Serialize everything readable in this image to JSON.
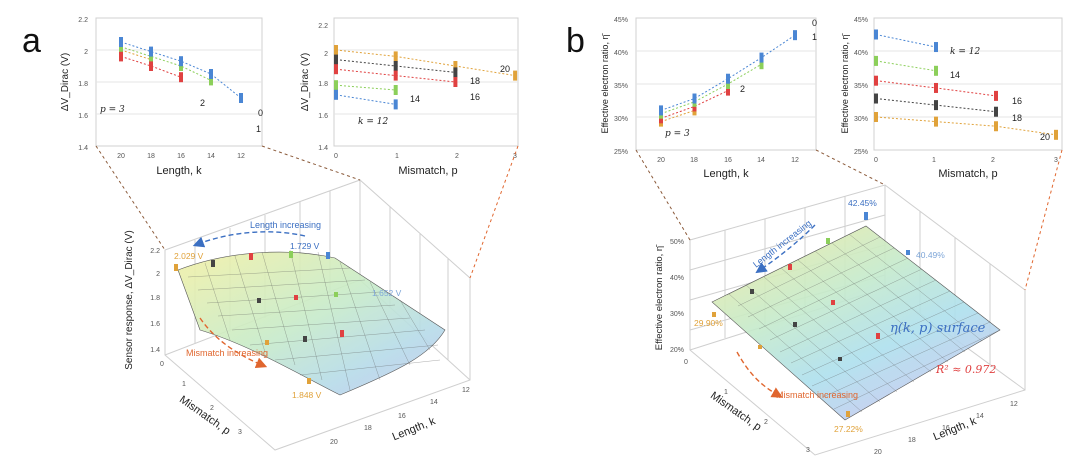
{
  "panels": [
    {
      "label": "a",
      "charts": [
        {
          "id": "a1",
          "type": "scatter-with-trendlines",
          "xlabel": "Length, k",
          "ylabel": "ΔV_Dirac (V)",
          "xticks": [
            "20",
            "18",
            "16",
            "14",
            "12"
          ],
          "yticks": [
            "1.4",
            "1.6",
            "1.8",
            "2",
            "2.2"
          ],
          "ylim": [
            1.4,
            2.2
          ],
          "series": [
            {
              "name": "p = 3",
              "color": "#e0a23a",
              "x": [
                20,
                18
              ],
              "y": [
                2.0,
                1.94
              ]
            },
            {
              "name": "2",
              "color": "#e04141",
              "x": [
                20,
                18,
                16
              ],
              "y": [
                1.96,
                1.9,
                1.83
              ]
            },
            {
              "name": "1",
              "color": "#8ccf5a",
              "x": [
                20,
                18,
                16,
                14
              ],
              "y": [
                2.02,
                1.96,
                1.9,
                1.81
              ]
            },
            {
              "name": "0",
              "color": "#4a86d4",
              "x": [
                20,
                18,
                16,
                14,
                12
              ],
              "y": [
                2.05,
                1.99,
                1.93,
                1.85,
                1.7
              ]
            }
          ],
          "labels": [
            "p = 3",
            "2",
            "1",
            "0"
          ]
        },
        {
          "id": "a2",
          "type": "scatter-with-trendlines",
          "xlabel": "Mismatch, p",
          "ylabel": "ΔV_Dirac (V)",
          "xticks": [
            "0",
            "1",
            "2",
            "3"
          ],
          "yticks": [
            "1.4",
            "1.6",
            "1.8",
            "2",
            "2.2"
          ],
          "ylim": [
            1.4,
            2.2
          ],
          "series": [
            {
              "name": "20",
              "color": "#e0a23a",
              "x": [
                0,
                1,
                2,
                3
              ],
              "y": [
                2.0,
                1.96,
                1.9,
                1.84
              ]
            },
            {
              "name": "18",
              "color": "#444444",
              "x": [
                0,
                1,
                2
              ],
              "y": [
                1.94,
                1.9,
                1.86
              ]
            },
            {
              "name": "16",
              "color": "#e04141",
              "x": [
                0,
                1,
                2
              ],
              "y": [
                1.88,
                1.84,
                1.8
              ]
            },
            {
              "name": "14",
              "color": "#8ccf5a",
              "x": [
                0,
                1
              ],
              "y": [
                1.78,
                1.75
              ]
            },
            {
              "name": "k = 12",
              "color": "#4a86d4",
              "x": [
                0,
                1
              ],
              "y": [
                1.72,
                1.66
              ]
            }
          ],
          "labels": [
            "20",
            "18",
            "16",
            "14",
            "k = 12"
          ]
        }
      ],
      "surface": {
        "type": "3d-surface",
        "zlabel": "Sensor response, ΔV_Dirac (V)",
        "xlabel": "Length, k",
        "ylabel": "Mismatch, p",
        "zticks": [
          "1.4",
          "1.6",
          "1.8",
          "2",
          "2.2"
        ],
        "kticks": [
          "12",
          "14",
          "16",
          "18",
          "20"
        ],
        "pticks": [
          "0",
          "1",
          "2",
          "3"
        ],
        "annotations": [
          "Length increasing",
          "Mismatch increasing",
          "2.029 V",
          "1.729 V",
          "1.652 V",
          "1.848 V"
        ],
        "values": {
          "max": 2.029,
          "corner_k12_p0": 1.729,
          "mid": 1.652,
          "min": 1.848
        }
      }
    },
    {
      "label": "b",
      "charts": [
        {
          "id": "b1",
          "type": "scatter-with-trendlines",
          "xlabel": "Length, k",
          "ylabel": "Effective electron ratio, η̄",
          "xticks": [
            "20",
            "18",
            "16",
            "14",
            "12"
          ],
          "yticks": [
            "25%",
            "30%",
            "35%",
            "40%",
            "45%"
          ],
          "ylim": [
            25,
            45
          ],
          "series": [
            {
              "name": "p = 3",
              "color": "#e0a23a",
              "x": [
                20,
                18
              ],
              "y": [
                29.3,
                31.0
              ]
            },
            {
              "name": "2",
              "color": "#e04141",
              "x": [
                20,
                18,
                16
              ],
              "y": [
                29.8,
                31.6,
                34.0
              ]
            },
            {
              "name": "1",
              "color": "#8ccf5a",
              "x": [
                20,
                18,
                16,
                14
              ],
              "y": [
                30.5,
                32.3,
                35.0,
                38.0
              ]
            },
            {
              "name": "0",
              "color": "#4a86d4",
              "x": [
                20,
                18,
                16,
                14,
                12
              ],
              "y": [
                31.0,
                32.8,
                35.8,
                39.0,
                42.4
              ]
            }
          ],
          "labels": [
            "p = 3",
            "2",
            "1",
            "0"
          ]
        },
        {
          "id": "b2",
          "type": "scatter-with-trendlines",
          "xlabel": "Mismatch, p",
          "ylabel": "Effective electron ratio, η̄",
          "xticks": [
            "0",
            "1",
            "2",
            "3"
          ],
          "yticks": [
            "25%",
            "30%",
            "35%",
            "40%",
            "45%"
          ],
          "ylim": [
            25,
            45
          ],
          "series": [
            {
              "name": "k = 12",
              "color": "#4a86d4",
              "x": [
                0,
                1
              ],
              "y": [
                42.5,
                40.6
              ]
            },
            {
              "name": "14",
              "color": "#8ccf5a",
              "x": [
                0,
                1
              ],
              "y": [
                38.5,
                37.0
              ]
            },
            {
              "name": "16",
              "color": "#e04141",
              "x": [
                0,
                1,
                2
              ],
              "y": [
                35.5,
                34.4,
                33.2
              ]
            },
            {
              "name": "18",
              "color": "#444444",
              "x": [
                0,
                1,
                2
              ],
              "y": [
                32.8,
                31.8,
                30.8
              ]
            },
            {
              "name": "20",
              "color": "#e0a23a",
              "x": [
                0,
                1,
                2,
                3
              ],
              "y": [
                30.0,
                29.3,
                28.6,
                27.3
              ]
            }
          ],
          "labels": [
            "k = 12",
            "14",
            "16",
            "18",
            "20"
          ]
        }
      ],
      "surface": {
        "type": "3d-surface",
        "zlabel": "Effective electron ratio, η̄",
        "xlabel": "Length, k",
        "ylabel": "Mismatch, p",
        "zticks": [
          "20%",
          "30%",
          "40%",
          "50%"
        ],
        "kticks": [
          "12",
          "14",
          "16",
          "18",
          "20"
        ],
        "pticks": [
          "0",
          "1",
          "2",
          "3"
        ],
        "annotations": [
          "Length increasing",
          "Mismatch increasing",
          "42.45%",
          "40.49%",
          "29.90%",
          "27.22%",
          "η(k, p) surface",
          "R² ≈ 0.972"
        ],
        "values": {
          "max": 42.45,
          "k12_p1": 40.49,
          "k20_p0": 29.9,
          "min": 27.22
        }
      }
    }
  ],
  "colors": {
    "p0": "#4a86d4",
    "p1": "#8ccf5a",
    "p2": "#e04141",
    "p3": "#e0a23a",
    "k18": "#444444",
    "annot_blue": "#3b6fc2",
    "annot_orange": "#e0662e"
  }
}
